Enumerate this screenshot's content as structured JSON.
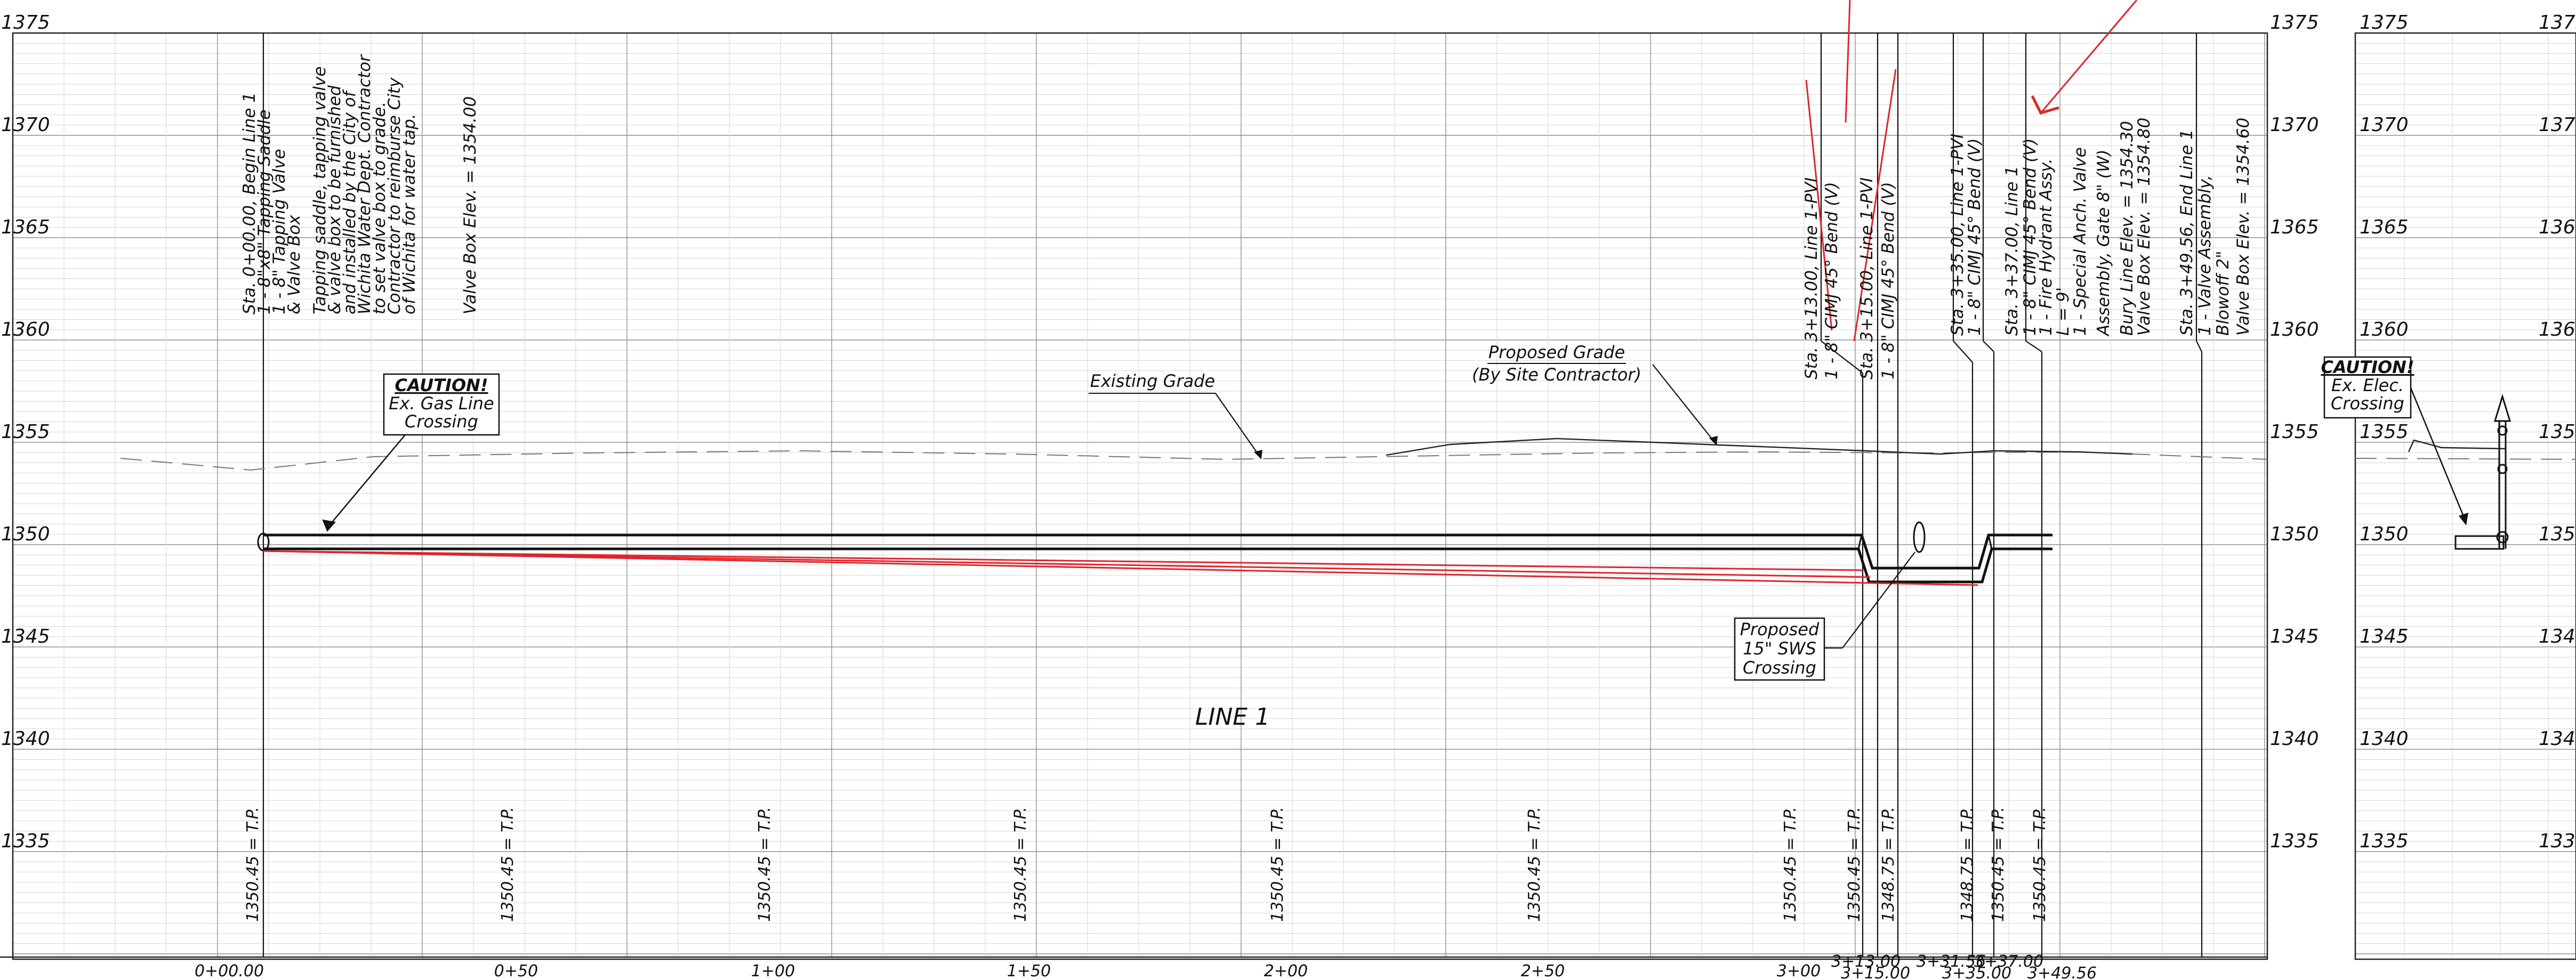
{
  "sheet": {
    "elevation_labels": [
      "1375",
      "1370",
      "1365",
      "1360",
      "1355",
      "1350",
      "1345",
      "1340",
      "1335"
    ],
    "station_labels": [
      "0+00.00",
      "0+50",
      "1+00",
      "1+50",
      "2+00",
      "2+50",
      "3+00",
      "3+13.00",
      "3+15.00",
      "3+31.56",
      "3+35.00",
      "3+37.00",
      "3+49.56"
    ],
    "line_title": "LINE 1",
    "tp_labels": [
      "1350.45 = T.P.",
      "1350.45 = T.P.",
      "1350.45 = T.P.",
      "1350.45 = T.P.",
      "1350.45 = T.P.",
      "1350.45 = T.P.",
      "1350.45 = T.P.",
      "1350.45 = T.P.",
      "1348.75 = T.P.",
      "1348.75 = T.P.",
      "1350.45 = T.P.",
      "1350.45 = T.P."
    ],
    "begin_note": [
      "Sta. 0+00.00, Begin Line 1",
      "1 - 8\"x8\" Tapping Saddle",
      "1 - 8\" Tapping Valve",
      "& Valve Box",
      "Tapping saddle, tapping valve",
      "& valve box to be furnished",
      "and installed by the City of",
      "Wichita Water Dept. Contractor",
      "to set valve box to grade.",
      "Contractor to reimburse City",
      "of Wichita for water tap.",
      "Valve Box Elev. = 1354.00"
    ],
    "crossed_note_1": [
      "Sta. 3+13.00, Line 1-PVI",
      "1 - 8\" CIMJ 45° Bend (V)"
    ],
    "crossed_note_2": [
      "Sta. 3+15.00, Line 1-PVI",
      "1 - 8\" CIMJ 45° Bend (V)"
    ],
    "note_335": [
      "Sta. 3+35.00, Line 1-PVI",
      "1 - 8\" CIMJ 45° Bend (V)"
    ],
    "note_337": [
      "Sta. 3+37.00, Line 1",
      "1 - 8\" CIMJ 45° Bend (V)",
      "1 - Fire Hydrant Assy.",
      "L = 9'",
      "1 - Special Anch. Valve",
      "Assembly, Gate 8\" (W)",
      "Bury Line Elev. = 1354.30",
      "Valve Box Elev. = 1354.80"
    ],
    "note_end": [
      "Sta. 3+49.56, End Line 1",
      "1 - Valve Assembly,",
      "Blowoff 2\"",
      "Valve Box Elev. = 1354.60"
    ],
    "caution_gas": [
      "CAUTION!",
      "Ex. Gas Line",
      "Crossing"
    ],
    "caution_elec": [
      "CAUTION!",
      "Ex. Elec.",
      "Crossing"
    ],
    "existing_grade": "Existing Grade",
    "proposed_grade": [
      "Proposed Grade",
      "(By Site Contractor)"
    ],
    "sws": [
      "Proposed",
      "15\" SWS",
      "Crossing"
    ]
  }
}
